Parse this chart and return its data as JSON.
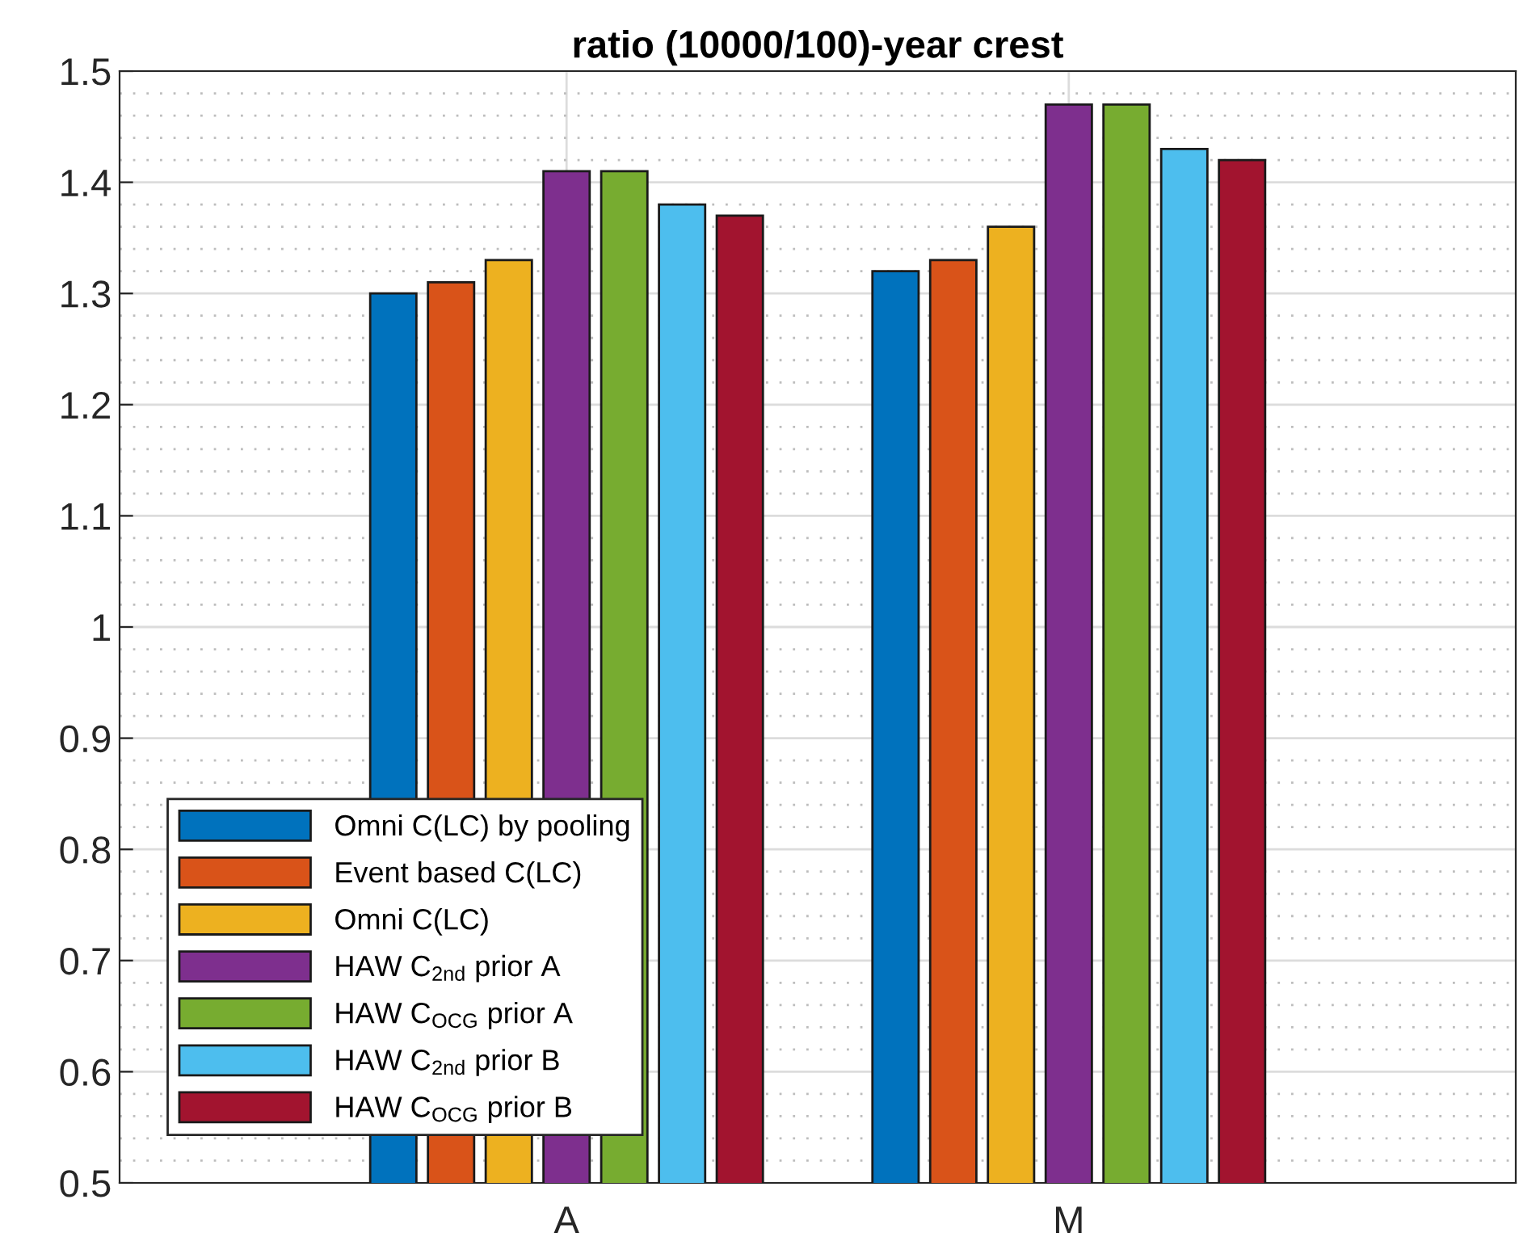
{
  "chart_data": {
    "type": "bar",
    "title": "ratio (10000/100)-year crest",
    "categories": [
      "A",
      "M"
    ],
    "series": [
      {
        "name": "Omni C(LC) by pooling",
        "color": "#0072bd",
        "values": [
          1.3,
          1.32
        ]
      },
      {
        "name": "Event based C(LC)",
        "color": "#d95319",
        "values": [
          1.31,
          1.33
        ]
      },
      {
        "name": "Omni C(LC)",
        "color": "#edb120",
        "values": [
          1.33,
          1.36
        ]
      },
      {
        "name": "HAW C$_{2nd}$ prior A",
        "color": "#7e2f8e",
        "values": [
          1.41,
          1.47
        ]
      },
      {
        "name": "HAW C$_{OCG}$ prior A",
        "color": "#77ac30",
        "values": [
          1.41,
          1.47
        ]
      },
      {
        "name": "HAW C$_{2nd}$ prior B",
        "color": "#4dbeee",
        "values": [
          1.38,
          1.43
        ]
      },
      {
        "name": "HAW C$_{OCG}$ prior B",
        "color": "#a2142f",
        "values": [
          1.37,
          1.42
        ]
      }
    ],
    "ylim": [
      0.5,
      1.5
    ],
    "yticks": [
      0.5,
      0.6,
      0.7,
      0.8,
      0.9,
      1,
      1.1,
      1.2,
      1.3,
      1.4,
      1.5
    ],
    "grid": true,
    "legend": "bottom left"
  }
}
